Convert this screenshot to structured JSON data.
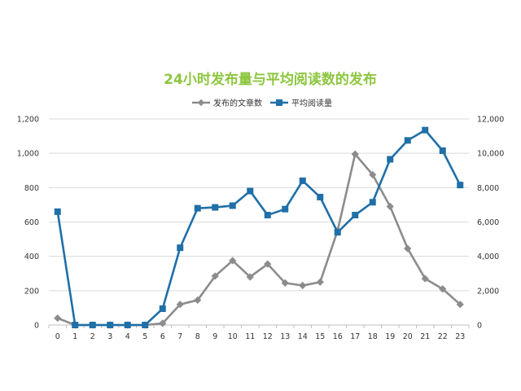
{
  "chart_data": {
    "type": "line",
    "title": "24小时发布量与平均阅读数的发布",
    "categories": [
      "0",
      "1",
      "2",
      "3",
      "4",
      "5",
      "6",
      "7",
      "8",
      "9",
      "10",
      "11",
      "12",
      "13",
      "14",
      "15",
      "16",
      "17",
      "18",
      "19",
      "20",
      "21",
      "22",
      "23"
    ],
    "legend_position": "top",
    "grid": "horizontal",
    "left_axis": {
      "ylim": [
        0,
        1200
      ],
      "ticks": [
        0,
        200,
        400,
        600,
        800,
        1000,
        1200
      ],
      "tick_labels": [
        "0",
        "200",
        "400",
        "600",
        "800",
        "1,000",
        "1,200"
      ]
    },
    "right_axis": {
      "ylim": [
        0,
        12000
      ],
      "ticks": [
        0,
        2000,
        4000,
        6000,
        8000,
        10000,
        12000
      ],
      "tick_labels": [
        "0",
        "2,000",
        "4,000",
        "6,000",
        "8,000",
        "10,000",
        "12,000"
      ]
    },
    "series": [
      {
        "name": "发布的文章数",
        "axis": "left",
        "color": "#8c8c8c",
        "marker": "diamond",
        "values": [
          40,
          0,
          0,
          0,
          0,
          0,
          10,
          120,
          145,
          285,
          375,
          280,
          355,
          245,
          230,
          250,
          550,
          995,
          875,
          690,
          445,
          270,
          210,
          120
        ]
      },
      {
        "name": "平均阅读量",
        "axis": "right",
        "color": "#1f6fa8",
        "marker": "square",
        "values": [
          6600,
          0,
          0,
          0,
          0,
          0,
          950,
          4500,
          6800,
          6850,
          6950,
          7800,
          6400,
          6750,
          8400,
          7450,
          5400,
          6400,
          7150,
          9650,
          10750,
          11350,
          10150,
          8150
        ]
      }
    ]
  },
  "colors": {
    "title": "#8cc63f",
    "grid": "#d9d9d9",
    "axis": "#bfbfbf"
  }
}
